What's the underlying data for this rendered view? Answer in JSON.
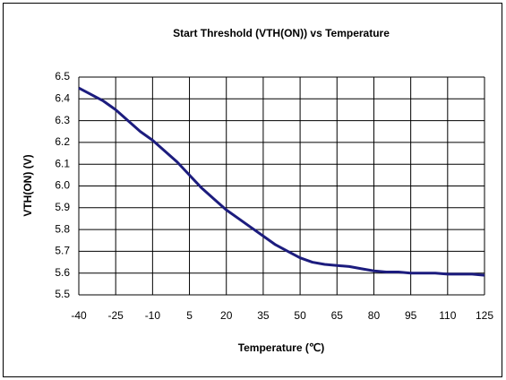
{
  "chart_data": {
    "type": "line",
    "title": "Start Threshold (VTH(ON)) vs Temperature",
    "x_label": "Temperature (℃)",
    "y_label": "VTH(ON) (V)",
    "x": [
      -40,
      -35,
      -30,
      -25,
      -20,
      -15,
      -10,
      -5,
      0,
      5,
      10,
      15,
      20,
      25,
      30,
      35,
      40,
      45,
      50,
      55,
      60,
      65,
      70,
      75,
      80,
      85,
      90,
      95,
      100,
      105,
      110,
      115,
      120,
      125
    ],
    "series": [
      {
        "name": "VTH(ON)",
        "color": "#1c1c7e",
        "values": [
          6.45,
          6.42,
          6.39,
          6.35,
          6.3,
          6.25,
          6.21,
          6.16,
          6.11,
          6.05,
          5.99,
          5.94,
          5.89,
          5.85,
          5.81,
          5.77,
          5.73,
          5.7,
          5.67,
          5.65,
          5.64,
          5.635,
          5.63,
          5.62,
          5.61,
          5.605,
          5.605,
          5.6,
          5.6,
          5.6,
          5.595,
          5.595,
          5.595,
          5.59
        ]
      }
    ],
    "xlim": [
      -40,
      125
    ],
    "xticks": [
      -40,
      -25,
      -10,
      5,
      20,
      35,
      50,
      65,
      80,
      95,
      110,
      125
    ],
    "ylim": [
      5.5,
      6.5
    ],
    "yticks": [
      5.5,
      5.6,
      5.7,
      5.8,
      5.9,
      {
        "value": 6,
        "label": "6.0"
      },
      6.1,
      6.2,
      6.3,
      6.4,
      6.5
    ],
    "grid": true
  }
}
